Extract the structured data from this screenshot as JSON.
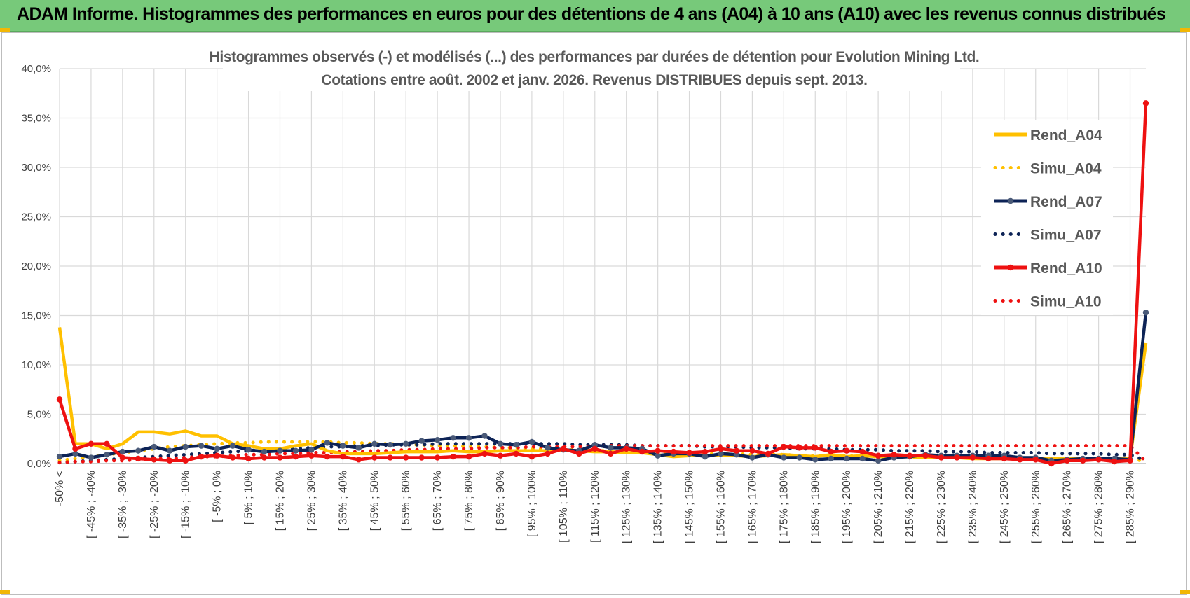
{
  "header": {
    "title": "ADAM Informe. Histogrammes des performances en euros pour des détentions de 4 ans (A04) à 10 ans (A10) avec les revenus connus distribués"
  },
  "chart_data": {
    "type": "line",
    "title_line1": "Histogrammes observés (-) et modélisés (...) des performances par durées de détention pour Evolution Mining Ltd.",
    "title_line2": "Cotations entre août. 2002 et janv. 2026. Revenus DISTRIBUES depuis sept. 2013.",
    "ylim": [
      0,
      40
    ],
    "yticks": [
      "0,0%",
      "5,0%",
      "10,0%",
      "15,0%",
      "20,0%",
      "25,0%",
      "30,0%",
      "35,0%",
      "40,0%"
    ],
    "xtick_labels": [
      "-50% <",
      "[ -45% ; -40%",
      "[ -35% ; -30%",
      "[ -25% ; -20%",
      "[ -15% ; -10%",
      "[ -5% ; 0%",
      "[ 5% ; 10%",
      "[ 15% ; 20%",
      "[ 25% ; 30%",
      "[ 35% ; 40%",
      "[ 45% ; 50%",
      "[ 55% ; 60%",
      "[ 65% ; 70%",
      "[ 75% ; 80%",
      "[ 85% ; 90%",
      "[ 95% ; 100%",
      "[ 105% ; 110%",
      "[ 115% ; 120%",
      "[ 125% ; 130%",
      "[ 135% ; 140%",
      "[ 145% ; 150%",
      "[ 155% ; 160%",
      "[ 165% ; 170%",
      "[ 175% ; 180%",
      "[ 185% ; 190%",
      "[ 195% ; 200%",
      "[ 205% ; 210%",
      "[ 215% ; 220%",
      "[ 225% ; 230%",
      "[ 235% ; 240%",
      "[ 245% ; 250%",
      "[ 255% ; 260%",
      "[ 265% ; 270%",
      "[ 275% ; 280%",
      "[ 285% ; 290%"
    ],
    "n_points": 70,
    "series": [
      {
        "name": "Rend_A04",
        "style": "solid",
        "color": "#ffc000",
        "markers": false,
        "values": [
          13.8,
          2.0,
          2.0,
          1.5,
          2.0,
          3.2,
          3.2,
          3.0,
          3.3,
          2.8,
          2.8,
          2.0,
          1.8,
          1.5,
          1.5,
          1.8,
          2.0,
          1.3,
          1.0,
          1.0,
          1.0,
          1.1,
          1.2,
          1.2,
          1.2,
          1.3,
          1.2,
          1.2,
          1.3,
          1.3,
          1.3,
          1.3,
          1.3,
          1.3,
          1.2,
          1.2,
          1.1,
          1.1,
          0.9,
          0.7,
          0.8,
          0.8,
          0.8,
          0.8,
          0.7,
          0.8,
          0.9,
          0.8,
          0.7,
          0.9,
          0.7,
          0.8,
          0.7,
          0.7,
          0.7,
          0.6,
          0.6,
          0.6,
          0.5,
          0.5,
          0.5,
          0.5,
          0.5,
          0.5,
          0.5,
          0.5,
          0.5,
          0.5,
          0.5,
          12.2
        ]
      },
      {
        "name": "Simu_A04",
        "style": "dotted",
        "color": "#ffc000",
        "markers": false,
        "values": [
          0.3,
          0.5,
          0.7,
          0.9,
          1.1,
          1.3,
          1.5,
          1.7,
          1.8,
          1.9,
          2.0,
          2.1,
          2.1,
          2.2,
          2.2,
          2.2,
          2.2,
          2.2,
          2.1,
          2.1,
          2.0,
          2.0,
          1.9,
          1.9,
          1.8,
          1.8,
          1.7,
          1.7,
          1.6,
          1.6,
          1.5,
          1.5,
          1.4,
          1.4,
          1.3,
          1.3,
          1.2,
          1.2,
          1.2,
          1.1,
          1.1,
          1.0,
          1.0,
          1.0,
          0.9,
          0.9,
          0.9,
          0.8,
          0.8,
          0.8,
          0.8,
          0.7,
          0.7,
          0.7,
          0.7,
          0.6,
          0.6,
          0.6,
          0.6,
          0.6,
          0.5,
          0.5,
          0.5,
          0.5,
          0.5,
          0.5,
          0.4,
          0.4,
          0.4,
          0.3
        ]
      },
      {
        "name": "Rend_A07",
        "style": "solid",
        "color": "#0d2356",
        "markers": true,
        "values": [
          0.7,
          1.0,
          0.6,
          0.9,
          1.2,
          1.3,
          1.7,
          1.3,
          1.7,
          1.8,
          1.5,
          1.8,
          1.4,
          1.2,
          1.3,
          1.3,
          1.4,
          2.1,
          1.8,
          1.6,
          2.0,
          1.9,
          2.0,
          2.3,
          2.4,
          2.6,
          2.6,
          2.8,
          2.0,
          1.9,
          2.2,
          1.6,
          1.4,
          1.3,
          1.9,
          1.6,
          1.6,
          1.5,
          0.8,
          1.0,
          1.0,
          0.7,
          1.0,
          0.9,
          0.6,
          0.9,
          0.6,
          0.6,
          0.4,
          0.5,
          0.5,
          0.5,
          0.3,
          0.6,
          0.7,
          0.9,
          0.8,
          0.8,
          0.8,
          0.8,
          0.8,
          0.6,
          0.6,
          0.3,
          0.4,
          0.5,
          0.5,
          0.5,
          0.4,
          15.3
        ]
      },
      {
        "name": "Simu_A07",
        "style": "dotted",
        "color": "#0d2356",
        "markers": false,
        "values": [
          0.1,
          0.2,
          0.3,
          0.4,
          0.5,
          0.6,
          0.7,
          0.8,
          0.9,
          1.0,
          1.1,
          1.2,
          1.3,
          1.4,
          1.5,
          1.5,
          1.6,
          1.7,
          1.7,
          1.8,
          1.8,
          1.9,
          1.9,
          1.9,
          2.0,
          2.0,
          2.0,
          2.0,
          2.0,
          2.0,
          2.0,
          2.0,
          2.0,
          1.9,
          1.9,
          1.9,
          1.9,
          1.8,
          1.8,
          1.8,
          1.8,
          1.7,
          1.7,
          1.7,
          1.6,
          1.6,
          1.6,
          1.5,
          1.5,
          1.5,
          1.4,
          1.4,
          1.4,
          1.3,
          1.3,
          1.3,
          1.2,
          1.2,
          1.2,
          1.1,
          1.1,
          1.1,
          1.1,
          1.0,
          1.0,
          1.0,
          1.0,
          0.9,
          0.9,
          0.3
        ]
      },
      {
        "name": "Rend_A10",
        "style": "solid",
        "color": "#ee1111",
        "markers": true,
        "values": [
          6.5,
          1.5,
          2.0,
          2.0,
          0.6,
          0.5,
          0.4,
          0.3,
          0.3,
          0.7,
          0.8,
          0.6,
          0.5,
          0.6,
          0.6,
          0.7,
          0.8,
          0.7,
          0.7,
          0.4,
          0.6,
          0.6,
          0.6,
          0.6,
          0.6,
          0.7,
          0.7,
          1.0,
          0.8,
          1.0,
          0.7,
          1.0,
          1.5,
          1.0,
          1.5,
          1.0,
          1.5,
          1.2,
          1.3,
          1.2,
          1.1,
          1.2,
          1.5,
          1.3,
          1.3,
          1.0,
          1.7,
          1.6,
          1.6,
          1.2,
          1.3,
          1.2,
          0.8,
          0.9,
          0.8,
          0.8,
          0.6,
          0.6,
          0.6,
          0.5,
          0.5,
          0.4,
          0.4,
          0.0,
          0.3,
          0.3,
          0.4,
          0.2,
          0.3,
          36.5
        ]
      },
      {
        "name": "Simu_A10",
        "style": "dotted",
        "color": "#ee1111",
        "markers": false,
        "values": [
          0.1,
          0.2,
          0.2,
          0.3,
          0.3,
          0.4,
          0.5,
          0.5,
          0.6,
          0.7,
          0.7,
          0.8,
          0.9,
          0.9,
          1.0,
          1.0,
          1.1,
          1.1,
          1.2,
          1.2,
          1.3,
          1.3,
          1.4,
          1.4,
          1.5,
          1.5,
          1.5,
          1.6,
          1.6,
          1.6,
          1.7,
          1.7,
          1.7,
          1.7,
          1.7,
          1.8,
          1.8,
          1.8,
          1.8,
          1.8,
          1.8,
          1.8,
          1.8,
          1.8,
          1.8,
          1.8,
          1.8,
          1.8,
          1.8,
          1.8,
          1.8,
          1.8,
          1.8,
          1.8,
          1.8,
          1.8,
          1.8,
          1.8,
          1.8,
          1.8,
          1.8,
          1.8,
          1.8,
          1.8,
          1.8,
          1.8,
          1.8,
          1.8,
          1.8,
          0.2
        ]
      }
    ],
    "legend_position": "right"
  }
}
